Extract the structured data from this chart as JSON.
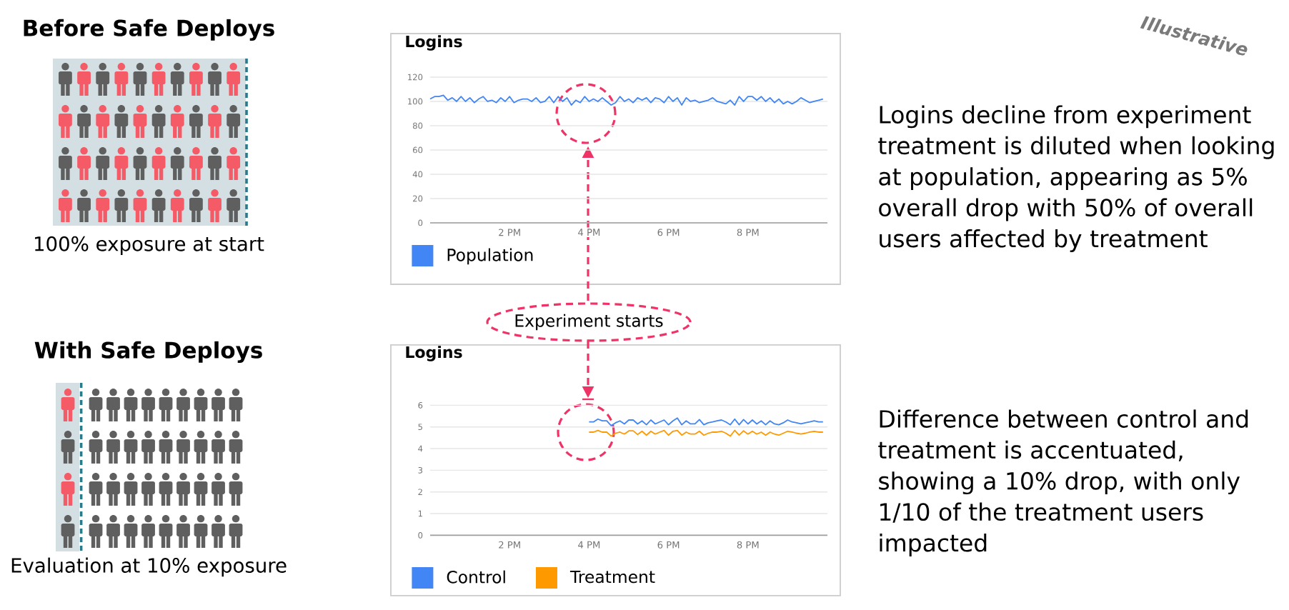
{
  "chart_data": [
    {
      "type": "line",
      "title": "Logins",
      "categories": [
        null,
        null,
        null,
        null,
        null,
        null,
        null,
        null,
        null,
        null,
        null,
        null,
        null,
        null,
        null,
        null,
        null,
        null,
        "2 PM",
        null,
        null,
        null,
        null,
        null,
        null,
        null,
        null,
        null,
        null,
        null,
        null,
        null,
        null,
        null,
        null,
        null,
        "4 PM",
        null,
        null,
        null,
        null,
        null,
        null,
        null,
        null,
        null,
        null,
        null,
        null,
        null,
        null,
        null,
        null,
        null,
        "6 PM",
        null,
        null,
        null,
        null,
        null,
        null,
        null,
        null,
        null,
        null,
        null,
        null,
        null,
        null,
        null,
        null,
        null,
        "8 PM",
        null,
        null,
        null,
        null,
        null,
        null,
        null,
        null,
        null,
        null,
        null,
        null,
        null,
        null,
        null,
        null,
        null
      ],
      "series": [
        {
          "name": "Population",
          "color": "#4285f4",
          "values": [
            102,
            104,
            104,
            105,
            101,
            103,
            100,
            104,
            100,
            103,
            99,
            102,
            104,
            100,
            101,
            99,
            103,
            100,
            104,
            99,
            101,
            102,
            102,
            100,
            103,
            99,
            100,
            104,
            99,
            104,
            100,
            103,
            97,
            101,
            99,
            104,
            100,
            102,
            100,
            103,
            100,
            97,
            99,
            104,
            100,
            102,
            99,
            103,
            101,
            103,
            99,
            103,
            102,
            99,
            104,
            100,
            103,
            97,
            103,
            100,
            101,
            99,
            100,
            101,
            103,
            100,
            99,
            98,
            101,
            97,
            104,
            100,
            104,
            104,
            101,
            104,
            100,
            103,
            99,
            102,
            98,
            100,
            98,
            100,
            103,
            101,
            99,
            100,
            101,
            102
          ]
        }
      ],
      "ylim": [
        0,
        120
      ],
      "yticks": [
        0,
        20,
        40,
        60,
        80,
        100,
        120
      ],
      "grid": "y",
      "legend": "bottom",
      "annotations": [
        "Before Safe Deploys",
        "100% exposure at start",
        "Logins decline from experiment treatment is diluted when looking at population, appearing as 5% overall drop with 50% of overall users affected by treatment",
        "Illustrative"
      ]
    },
    {
      "type": "line",
      "title": "Logins",
      "categories": [
        null,
        null,
        null,
        null,
        null,
        null,
        null,
        null,
        null,
        null,
        null,
        null,
        null,
        null,
        null,
        null,
        null,
        null,
        "2 PM",
        null,
        null,
        null,
        null,
        null,
        null,
        null,
        null,
        null,
        null,
        null,
        null,
        null,
        null,
        null,
        null,
        null,
        "4 PM",
        null,
        null,
        null,
        null,
        null,
        null,
        null,
        null,
        null,
        null,
        null,
        null,
        null,
        null,
        null,
        null,
        null,
        "6 PM",
        null,
        null,
        null,
        null,
        null,
        null,
        null,
        null,
        null,
        null,
        null,
        null,
        null,
        null,
        null,
        null,
        null,
        "8 PM",
        null,
        null,
        null,
        null,
        null,
        null,
        null,
        null,
        null,
        null,
        null,
        null,
        null,
        null,
        null,
        null,
        null
      ],
      "series": [
        {
          "name": "Control",
          "color": "#4285f4",
          "values": [
            null,
            null,
            null,
            null,
            null,
            null,
            null,
            null,
            null,
            null,
            null,
            null,
            null,
            null,
            null,
            null,
            null,
            null,
            null,
            null,
            null,
            null,
            null,
            null,
            null,
            null,
            null,
            null,
            null,
            null,
            null,
            null,
            null,
            null,
            null,
            null,
            5.23,
            5.23,
            5.36,
            5.28,
            5.28,
            5.06,
            5.19,
            5.28,
            5.14,
            5.32,
            5.32,
            5.14,
            5.28,
            5.1,
            5.32,
            5.14,
            5.23,
            5.32,
            5.1,
            5.28,
            5.41,
            5.1,
            5.28,
            5.14,
            5.14,
            5.34,
            5.1,
            5.19,
            5.23,
            5.28,
            5.32,
            5.23,
            5.1,
            5.36,
            5.1,
            5.34,
            5.14,
            5.32,
            5.14,
            5.28,
            5.1,
            5.28,
            5.14,
            5.1,
            5.19,
            5.32,
            5.23,
            5.19,
            5.14,
            5.19,
            5.23,
            5.28,
            5.23,
            5.23
          ]
        },
        {
          "name": "Treatment",
          "color": "#ff9900",
          "values": [
            null,
            null,
            null,
            null,
            null,
            null,
            null,
            null,
            null,
            null,
            null,
            null,
            null,
            null,
            null,
            null,
            null,
            null,
            null,
            null,
            null,
            null,
            null,
            null,
            null,
            null,
            null,
            null,
            null,
            null,
            null,
            null,
            null,
            null,
            null,
            null,
            4.76,
            4.76,
            4.84,
            4.76,
            4.76,
            4.58,
            4.71,
            4.76,
            4.67,
            4.82,
            4.82,
            4.65,
            4.8,
            4.62,
            4.8,
            4.67,
            4.76,
            4.84,
            4.62,
            4.8,
            4.84,
            4.62,
            4.76,
            4.67,
            4.67,
            4.8,
            4.62,
            4.71,
            4.76,
            4.76,
            4.8,
            4.71,
            4.58,
            4.84,
            4.62,
            4.82,
            4.67,
            4.8,
            4.67,
            4.76,
            4.62,
            4.76,
            4.67,
            4.62,
            4.71,
            4.8,
            4.76,
            4.71,
            4.67,
            4.71,
            4.76,
            4.8,
            4.76,
            4.76
          ]
        }
      ],
      "ylim": [
        0,
        6
      ],
      "yticks": [
        0,
        1,
        2,
        3,
        4,
        5,
        6
      ],
      "grid": "y",
      "legend": "bottom",
      "annotations": [
        "Experiment starts",
        "With Safe Deploys",
        "Evaluation at 10% exposure",
        "Difference between control and treatment is accentuated, showing a 10% drop, with only 1/10 of the treatment users impacted"
      ]
    }
  ]
}
